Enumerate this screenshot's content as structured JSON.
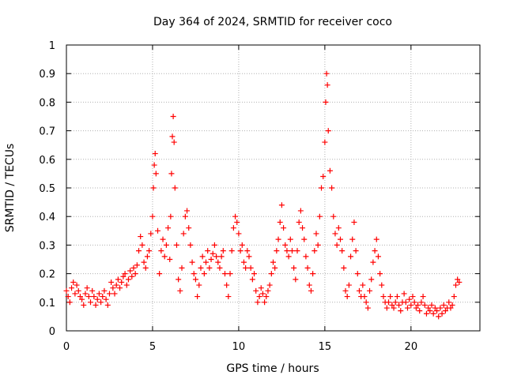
{
  "chart_data": {
    "type": "scatter",
    "title": "Day 364 of 2024, SRMTID for receiver coco",
    "xlabel": "GPS time / hours",
    "ylabel": "SRMTID / TECUs",
    "xlim": [
      0,
      24
    ],
    "ylim": [
      0,
      1
    ],
    "xticks": [
      0,
      5,
      10,
      15,
      20
    ],
    "xtick_labels": [
      "0",
      "5",
      "10",
      "15",
      "20"
    ],
    "yticks": [
      0,
      0.1,
      0.2,
      0.3,
      0.4,
      0.5,
      0.6,
      0.7,
      0.8,
      0.9,
      1
    ],
    "ytick_labels": [
      "0",
      "0.1",
      "0.2",
      "0.3",
      "0.4",
      "0.5",
      "0.6",
      "0.7",
      "0.8",
      "0.9",
      "1"
    ],
    "grid": true,
    "marker": "plus",
    "color": "#ff0000",
    "series": [
      {
        "name": "SRMTID",
        "points": [
          [
            0.0,
            0.14
          ],
          [
            0.1,
            0.12
          ],
          [
            0.2,
            0.1
          ],
          [
            0.3,
            0.15
          ],
          [
            0.4,
            0.17
          ],
          [
            0.5,
            0.13
          ],
          [
            0.6,
            0.16
          ],
          [
            0.7,
            0.14
          ],
          [
            0.8,
            0.12
          ],
          [
            0.9,
            0.11
          ],
          [
            1.0,
            0.09
          ],
          [
            1.1,
            0.13
          ],
          [
            1.2,
            0.15
          ],
          [
            1.3,
            0.12
          ],
          [
            1.4,
            0.1
          ],
          [
            1.5,
            0.14
          ],
          [
            1.6,
            0.12
          ],
          [
            1.7,
            0.09
          ],
          [
            1.8,
            0.11
          ],
          [
            1.9,
            0.13
          ],
          [
            2.0,
            0.1
          ],
          [
            2.1,
            0.12
          ],
          [
            2.2,
            0.14
          ],
          [
            2.3,
            0.11
          ],
          [
            2.4,
            0.09
          ],
          [
            2.5,
            0.13
          ],
          [
            2.6,
            0.17
          ],
          [
            2.7,
            0.15
          ],
          [
            2.8,
            0.13
          ],
          [
            2.9,
            0.16
          ],
          [
            3.0,
            0.18
          ],
          [
            3.1,
            0.15
          ],
          [
            3.2,
            0.17
          ],
          [
            3.3,
            0.19
          ],
          [
            3.4,
            0.2
          ],
          [
            3.5,
            0.16
          ],
          [
            3.6,
            0.18
          ],
          [
            3.7,
            0.21
          ],
          [
            3.8,
            0.19
          ],
          [
            3.9,
            0.22
          ],
          [
            4.0,
            0.2
          ],
          [
            4.1,
            0.23
          ],
          [
            4.2,
            0.28
          ],
          [
            4.3,
            0.33
          ],
          [
            4.4,
            0.3
          ],
          [
            4.5,
            0.24
          ],
          [
            4.6,
            0.22
          ],
          [
            4.7,
            0.26
          ],
          [
            4.8,
            0.28
          ],
          [
            4.9,
            0.34
          ],
          [
            5.0,
            0.4
          ],
          [
            5.05,
            0.5
          ],
          [
            5.1,
            0.58
          ],
          [
            5.15,
            0.62
          ],
          [
            5.2,
            0.55
          ],
          [
            5.3,
            0.35
          ],
          [
            5.4,
            0.2
          ],
          [
            5.5,
            0.28
          ],
          [
            5.6,
            0.32
          ],
          [
            5.7,
            0.26
          ],
          [
            5.8,
            0.3
          ],
          [
            5.9,
            0.36
          ],
          [
            6.0,
            0.25
          ],
          [
            6.05,
            0.4
          ],
          [
            6.1,
            0.55
          ],
          [
            6.15,
            0.68
          ],
          [
            6.2,
            0.75
          ],
          [
            6.25,
            0.66
          ],
          [
            6.3,
            0.5
          ],
          [
            6.4,
            0.3
          ],
          [
            6.5,
            0.18
          ],
          [
            6.6,
            0.14
          ],
          [
            6.7,
            0.22
          ],
          [
            6.8,
            0.34
          ],
          [
            6.9,
            0.4
          ],
          [
            7.0,
            0.42
          ],
          [
            7.1,
            0.36
          ],
          [
            7.2,
            0.3
          ],
          [
            7.3,
            0.24
          ],
          [
            7.4,
            0.2
          ],
          [
            7.5,
            0.18
          ],
          [
            7.6,
            0.12
          ],
          [
            7.7,
            0.16
          ],
          [
            7.8,
            0.22
          ],
          [
            7.9,
            0.26
          ],
          [
            8.0,
            0.2
          ],
          [
            8.1,
            0.24
          ],
          [
            8.2,
            0.28
          ],
          [
            8.3,
            0.22
          ],
          [
            8.4,
            0.25
          ],
          [
            8.5,
            0.27
          ],
          [
            8.6,
            0.3
          ],
          [
            8.7,
            0.26
          ],
          [
            8.8,
            0.24
          ],
          [
            8.9,
            0.22
          ],
          [
            9.0,
            0.26
          ],
          [
            9.1,
            0.28
          ],
          [
            9.2,
            0.2
          ],
          [
            9.3,
            0.16
          ],
          [
            9.4,
            0.12
          ],
          [
            9.5,
            0.2
          ],
          [
            9.6,
            0.28
          ],
          [
            9.7,
            0.36
          ],
          [
            9.8,
            0.4
          ],
          [
            9.9,
            0.38
          ],
          [
            10.0,
            0.34
          ],
          [
            10.1,
            0.28
          ],
          [
            10.2,
            0.3
          ],
          [
            10.3,
            0.24
          ],
          [
            10.4,
            0.22
          ],
          [
            10.5,
            0.28
          ],
          [
            10.6,
            0.26
          ],
          [
            10.7,
            0.22
          ],
          [
            10.8,
            0.18
          ],
          [
            10.9,
            0.2
          ],
          [
            11.0,
            0.14
          ],
          [
            11.1,
            0.1
          ],
          [
            11.2,
            0.12
          ],
          [
            11.3,
            0.15
          ],
          [
            11.4,
            0.13
          ],
          [
            11.5,
            0.1
          ],
          [
            11.6,
            0.12
          ],
          [
            11.7,
            0.14
          ],
          [
            11.8,
            0.16
          ],
          [
            11.9,
            0.2
          ],
          [
            12.0,
            0.24
          ],
          [
            12.1,
            0.22
          ],
          [
            12.2,
            0.28
          ],
          [
            12.3,
            0.32
          ],
          [
            12.4,
            0.38
          ],
          [
            12.5,
            0.44
          ],
          [
            12.6,
            0.36
          ],
          [
            12.7,
            0.3
          ],
          [
            12.8,
            0.28
          ],
          [
            12.9,
            0.26
          ],
          [
            13.0,
            0.32
          ],
          [
            13.1,
            0.28
          ],
          [
            13.2,
            0.22
          ],
          [
            13.3,
            0.18
          ],
          [
            13.4,
            0.28
          ],
          [
            13.5,
            0.38
          ],
          [
            13.6,
            0.42
          ],
          [
            13.7,
            0.36
          ],
          [
            13.8,
            0.32
          ],
          [
            13.9,
            0.26
          ],
          [
            14.0,
            0.22
          ],
          [
            14.1,
            0.16
          ],
          [
            14.2,
            0.14
          ],
          [
            14.3,
            0.2
          ],
          [
            14.4,
            0.28
          ],
          [
            14.5,
            0.34
          ],
          [
            14.6,
            0.3
          ],
          [
            14.7,
            0.4
          ],
          [
            14.8,
            0.5
          ],
          [
            14.9,
            0.54
          ],
          [
            15.0,
            0.66
          ],
          [
            15.05,
            0.8
          ],
          [
            15.1,
            0.9
          ],
          [
            15.15,
            0.86
          ],
          [
            15.2,
            0.7
          ],
          [
            15.3,
            0.56
          ],
          [
            15.4,
            0.5
          ],
          [
            15.5,
            0.4
          ],
          [
            15.6,
            0.34
          ],
          [
            15.7,
            0.3
          ],
          [
            15.8,
            0.36
          ],
          [
            15.9,
            0.32
          ],
          [
            16.0,
            0.28
          ],
          [
            16.1,
            0.22
          ],
          [
            16.2,
            0.14
          ],
          [
            16.3,
            0.12
          ],
          [
            16.4,
            0.16
          ],
          [
            16.5,
            0.26
          ],
          [
            16.6,
            0.32
          ],
          [
            16.7,
            0.38
          ],
          [
            16.8,
            0.28
          ],
          [
            16.9,
            0.2
          ],
          [
            17.0,
            0.14
          ],
          [
            17.1,
            0.12
          ],
          [
            17.2,
            0.16
          ],
          [
            17.3,
            0.12
          ],
          [
            17.4,
            0.1
          ],
          [
            17.5,
            0.08
          ],
          [
            17.6,
            0.14
          ],
          [
            17.7,
            0.18
          ],
          [
            17.8,
            0.24
          ],
          [
            17.9,
            0.28
          ],
          [
            18.0,
            0.32
          ],
          [
            18.1,
            0.26
          ],
          [
            18.2,
            0.2
          ],
          [
            18.3,
            0.16
          ],
          [
            18.4,
            0.12
          ],
          [
            18.5,
            0.1
          ],
          [
            18.6,
            0.08
          ],
          [
            18.7,
            0.1
          ],
          [
            18.8,
            0.12
          ],
          [
            18.9,
            0.09
          ],
          [
            19.0,
            0.08
          ],
          [
            19.1,
            0.1
          ],
          [
            19.2,
            0.12
          ],
          [
            19.3,
            0.09
          ],
          [
            19.4,
            0.07
          ],
          [
            19.5,
            0.1
          ],
          [
            19.6,
            0.13
          ],
          [
            19.7,
            0.1
          ],
          [
            19.8,
            0.08
          ],
          [
            19.9,
            0.11
          ],
          [
            20.0,
            0.09
          ],
          [
            20.1,
            0.12
          ],
          [
            20.2,
            0.1
          ],
          [
            20.3,
            0.08
          ],
          [
            20.4,
            0.09
          ],
          [
            20.5,
            0.07
          ],
          [
            20.6,
            0.1
          ],
          [
            20.7,
            0.12
          ],
          [
            20.8,
            0.09
          ],
          [
            20.9,
            0.06
          ],
          [
            21.0,
            0.08
          ],
          [
            21.1,
            0.07
          ],
          [
            21.2,
            0.09
          ],
          [
            21.3,
            0.06
          ],
          [
            21.4,
            0.08
          ],
          [
            21.5,
            0.07
          ],
          [
            21.6,
            0.05
          ],
          [
            21.7,
            0.08
          ],
          [
            21.8,
            0.06
          ],
          [
            21.9,
            0.09
          ],
          [
            22.0,
            0.07
          ],
          [
            22.1,
            0.08
          ],
          [
            22.2,
            0.1
          ],
          [
            22.3,
            0.08
          ],
          [
            22.4,
            0.09
          ],
          [
            22.5,
            0.12
          ],
          [
            22.6,
            0.16
          ],
          [
            22.7,
            0.18
          ],
          [
            22.8,
            0.17
          ]
        ]
      }
    ]
  }
}
